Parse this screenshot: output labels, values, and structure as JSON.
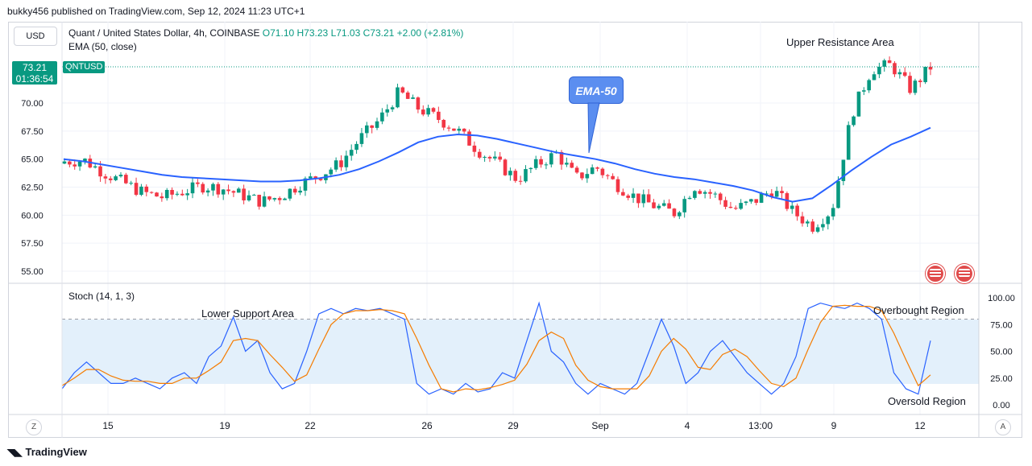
{
  "publisher_line": "bukky456 published on TradingView.com, Sep 12, 2024 11:23 UTC+1",
  "currency_button": "USD",
  "legend": {
    "symbol_line": "Quant / United States Dollar, 4h, COINBASE",
    "open": "O71.10",
    "high": "H73.23",
    "low": "L71.03",
    "close": "C73.21",
    "change": "+2.00 (+2.81%)",
    "ema_label": "EMA (50, close)",
    "stoch_label": "Stoch (14, 1, 3)"
  },
  "price_tag": {
    "price": "73.21",
    "countdown": "01:36:54",
    "symbol": "QNTUSD"
  },
  "annotations": {
    "upper_resistance": "Upper Resistance Area",
    "lower_support": "Lower Support Area",
    "overbought": "Overbought Region",
    "oversold": "Oversold Region",
    "ema_callout": "EMA-50"
  },
  "branding": "TradingView",
  "axis_buttons": {
    "left": "Z",
    "right": "A"
  },
  "colors": {
    "up": "#089981",
    "down": "#f23645",
    "ema": "#2962ff",
    "stoch_k": "#2962ff",
    "stoch_d": "#f57c00",
    "band": "#e3f0fb"
  },
  "chart_data": [
    {
      "type": "candlestick",
      "title": "Quant / United States Dollar, 4h, COINBASE",
      "ylim": [
        54,
        77
      ],
      "yticks": [
        "55.00",
        "57.50",
        "60.00",
        "62.50",
        "65.00",
        "67.50",
        "70.00"
      ],
      "xticks": [
        "15",
        "19",
        "22",
        "26",
        "29",
        "Sep",
        "4",
        "13:00",
        "9",
        "12"
      ],
      "current_price": 73.21,
      "ema50": [
        65.0,
        64.8,
        64.5,
        64.2,
        63.9,
        63.6,
        63.4,
        63.3,
        63.2,
        63.1,
        63.0,
        63.0,
        63.1,
        63.3,
        63.6,
        64.1,
        64.8,
        65.6,
        66.5,
        67.0,
        67.2,
        67.1,
        66.8,
        66.4,
        66.0,
        65.6,
        65.3,
        65.0,
        64.6,
        64.1,
        63.7,
        63.4,
        63.2,
        62.9,
        62.6,
        62.2,
        61.6,
        61.2,
        61.5,
        62.7,
        64.0,
        65.2,
        66.3,
        67.0,
        67.8
      ],
      "stoch_k": [
        15,
        30,
        40,
        30,
        20,
        20,
        25,
        20,
        15,
        25,
        30,
        20,
        45,
        55,
        82,
        50,
        60,
        30,
        15,
        20,
        50,
        85,
        90,
        85,
        90,
        88,
        90,
        85,
        80,
        20,
        10,
        15,
        10,
        20,
        12,
        15,
        30,
        25,
        60,
        95,
        50,
        40,
        20,
        10,
        20,
        15,
        10,
        20,
        50,
        80,
        55,
        20,
        30,
        50,
        60,
        45,
        30,
        20,
        10,
        20,
        45,
        90,
        95,
        92,
        90,
        95,
        90,
        80,
        30,
        15,
        10,
        60
      ],
      "stoch_d": [
        18,
        25,
        33,
        33,
        27,
        23,
        22,
        22,
        20,
        20,
        25,
        25,
        32,
        40,
        60,
        62,
        60,
        47,
        35,
        22,
        28,
        52,
        75,
        85,
        88,
        88,
        89,
        88,
        85,
        62,
        37,
        15,
        12,
        15,
        14,
        16,
        19,
        23,
        38,
        60,
        68,
        62,
        37,
        23,
        17,
        15,
        15,
        15,
        27,
        50,
        62,
        52,
        35,
        33,
        47,
        52,
        45,
        32,
        20,
        17,
        25,
        52,
        77,
        92,
        93,
        92,
        92,
        88,
        67,
        42,
        18,
        28
      ],
      "stoch_levels": [
        "100.00",
        "75.00",
        "50.00",
        "25.00",
        "0.00"
      ]
    }
  ]
}
